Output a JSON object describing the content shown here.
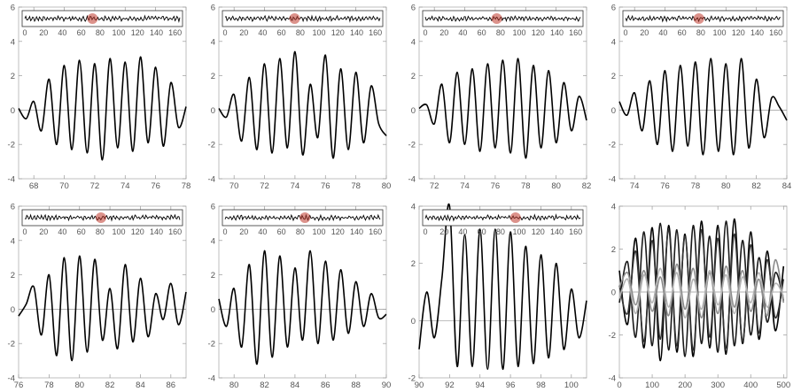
{
  "chart_data": [
    {
      "type": "line",
      "xlim": [
        67,
        78
      ],
      "ylim": [
        -4,
        6
      ],
      "x_ticks": [
        68,
        70,
        72,
        74,
        76,
        78
      ],
      "y_ticks": [
        -4,
        -2,
        0,
        2,
        4,
        6
      ],
      "inset": {
        "type": "line",
        "xlim": [
          0,
          165
        ],
        "x_ticks": [
          0,
          20,
          40,
          60,
          80,
          100,
          120,
          140,
          160
        ],
        "highlight_x": 72
      },
      "series": [
        {
          "x": [
            67,
            67.5,
            68,
            68.5,
            69,
            69.5,
            70,
            70.5,
            71,
            71.5,
            72,
            72.5,
            73,
            73.5,
            74,
            74.5,
            75,
            75.5,
            76,
            76.5,
            77,
            77.5,
            78
          ],
          "y": [
            0.1,
            -0.5,
            0.5,
            -1.2,
            1.8,
            -2.0,
            2.6,
            -2.3,
            2.9,
            -2.5,
            2.7,
            -2.9,
            3.0,
            -2.2,
            2.8,
            -2.4,
            3.1,
            -1.9,
            2.5,
            -2.1,
            1.6,
            -1.0,
            0.2
          ]
        }
      ]
    },
    {
      "type": "line",
      "xlim": [
        69,
        80
      ],
      "ylim": [
        -4,
        6
      ],
      "x_ticks": [
        70,
        72,
        74,
        76,
        78,
        80
      ],
      "y_ticks": [
        -4,
        -2,
        0,
        2,
        4,
        6
      ],
      "inset": {
        "type": "line",
        "xlim": [
          0,
          165
        ],
        "x_ticks": [
          0,
          20,
          40,
          60,
          80,
          100,
          120,
          140,
          160
        ],
        "highlight_x": 74
      },
      "series": [
        {
          "x": [
            69,
            69.5,
            70,
            70.5,
            71,
            71.5,
            72,
            72.5,
            73,
            73.5,
            74,
            74.5,
            75,
            75.5,
            76,
            76.5,
            77,
            77.5,
            78,
            78.5,
            79,
            79.5,
            80
          ],
          "y": [
            0.1,
            -0.4,
            0.9,
            -1.8,
            1.9,
            -2.3,
            2.7,
            -2.5,
            3.0,
            -2.2,
            3.4,
            -2.6,
            1.5,
            -1.6,
            3.2,
            -2.8,
            2.4,
            -2.3,
            2.2,
            -1.9,
            1.4,
            -0.8,
            -1.5
          ]
        }
      ]
    },
    {
      "type": "line",
      "xlim": [
        71,
        82
      ],
      "ylim": [
        -4,
        6
      ],
      "x_ticks": [
        72,
        74,
        76,
        78,
        80,
        82
      ],
      "y_ticks": [
        -4,
        -2,
        0,
        2,
        4,
        6
      ],
      "inset": {
        "type": "line",
        "xlim": [
          0,
          165
        ],
        "x_ticks": [
          0,
          20,
          40,
          60,
          80,
          100,
          120,
          140,
          160
        ],
        "highlight_x": 76
      },
      "series": [
        {
          "x": [
            71,
            71.5,
            72,
            72.5,
            73,
            73.5,
            74,
            74.5,
            75,
            75.5,
            76,
            76.5,
            77,
            77.5,
            78,
            78.5,
            79,
            79.5,
            80,
            80.5,
            81,
            81.5,
            82
          ],
          "y": [
            0.1,
            0.3,
            -0.8,
            1.5,
            -1.9,
            2.2,
            -2.0,
            2.4,
            -2.4,
            2.7,
            -2.2,
            2.9,
            -2.5,
            3.0,
            -2.8,
            2.6,
            -2.2,
            2.3,
            -1.9,
            1.6,
            -1.2,
            0.8,
            -0.6
          ]
        }
      ]
    },
    {
      "type": "line",
      "xlim": [
        73,
        84
      ],
      "ylim": [
        -4,
        6
      ],
      "x_ticks": [
        74,
        76,
        78,
        80,
        82,
        84
      ],
      "y_ticks": [
        -4,
        -2,
        0,
        2,
        4,
        6
      ],
      "inset": {
        "type": "line",
        "xlim": [
          0,
          165
        ],
        "x_ticks": [
          0,
          20,
          40,
          60,
          80,
          100,
          120,
          140,
          160
        ],
        "highlight_x": 78
      },
      "series": [
        {
          "x": [
            73,
            73.5,
            74,
            74.5,
            75,
            75.5,
            76,
            76.5,
            77,
            77.5,
            78,
            78.5,
            79,
            79.5,
            80,
            80.5,
            81,
            81.5,
            82,
            82.5,
            83,
            83.5,
            84
          ],
          "y": [
            0.5,
            -0.3,
            1.0,
            -1.2,
            1.7,
            -2.0,
            2.3,
            -2.4,
            2.6,
            -2.1,
            2.8,
            -2.6,
            3.0,
            -2.4,
            2.7,
            -2.6,
            3.0,
            -2.2,
            1.8,
            -1.6,
            0.7,
            0.2,
            -0.6
          ]
        }
      ]
    },
    {
      "type": "line",
      "xlim": [
        76,
        87
      ],
      "ylim": [
        -4,
        6
      ],
      "x_ticks": [
        76,
        78,
        80,
        82,
        84,
        86
      ],
      "y_ticks": [
        -4,
        -2,
        0,
        2,
        4,
        6
      ],
      "inset": {
        "type": "line",
        "xlim": [
          0,
          165
        ],
        "x_ticks": [
          0,
          20,
          40,
          60,
          80,
          100,
          120,
          140,
          160
        ],
        "highlight_x": 81
      },
      "series": [
        {
          "x": [
            76,
            76.5,
            77,
            77.5,
            78,
            78.5,
            79,
            79.5,
            80,
            80.5,
            81,
            81.5,
            82,
            82.5,
            83,
            83.5,
            84,
            84.5,
            85,
            85.5,
            86,
            86.5,
            87
          ],
          "y": [
            -0.4,
            0.3,
            1.3,
            -1.5,
            2.0,
            -2.7,
            3.0,
            -3.0,
            3.1,
            -2.5,
            2.9,
            -1.8,
            1.2,
            -2.3,
            2.6,
            -1.9,
            1.8,
            -1.6,
            0.9,
            -0.6,
            1.5,
            -0.9,
            1.0
          ]
        }
      ]
    },
    {
      "type": "line",
      "xlim": [
        79,
        90
      ],
      "ylim": [
        -4,
        6
      ],
      "x_ticks": [
        80,
        82,
        84,
        86,
        88,
        90
      ],
      "y_ticks": [
        -4,
        -2,
        0,
        2,
        4,
        6
      ],
      "inset": {
        "type": "line",
        "xlim": [
          0,
          165
        ],
        "x_ticks": [
          0,
          20,
          40,
          60,
          80,
          100,
          120,
          140,
          160
        ],
        "highlight_x": 85
      },
      "series": [
        {
          "x": [
            79,
            79.5,
            80,
            80.5,
            81,
            81.5,
            82,
            82.5,
            83,
            83.5,
            84,
            84.5,
            85,
            85.5,
            86,
            86.5,
            87,
            87.5,
            88,
            88.5,
            89,
            89.5,
            90
          ],
          "y": [
            0.6,
            -1.0,
            1.2,
            -2.2,
            2.6,
            -3.2,
            3.4,
            -2.8,
            3.1,
            -2.2,
            2.4,
            -1.8,
            3.4,
            -2.0,
            2.8,
            -1.8,
            2.3,
            -1.4,
            1.6,
            -1.0,
            0.9,
            -0.5,
            -0.3
          ]
        }
      ]
    },
    {
      "type": "line",
      "xlim": [
        90,
        101
      ],
      "ylim": [
        -2,
        4
      ],
      "x_ticks": [
        90,
        92,
        94,
        96,
        98,
        100
      ],
      "y_ticks": [
        -2,
        0,
        2,
        4
      ],
      "inset": {
        "type": "line",
        "xlim": [
          0,
          165
        ],
        "x_ticks": [
          0,
          20,
          40,
          60,
          80,
          100,
          120,
          140,
          160
        ],
        "highlight_x": 96
      },
      "series": [
        {
          "x": [
            90,
            90.5,
            91,
            91.5,
            92,
            92.5,
            93,
            93.5,
            94,
            94.5,
            95,
            95.5,
            96,
            96.5,
            97,
            97.5,
            98,
            98.5,
            99,
            99.5,
            100,
            100.5,
            101
          ],
          "y": [
            -1.0,
            1.0,
            -0.6,
            1.5,
            4.0,
            -1.6,
            3.0,
            -1.6,
            3.2,
            -1.7,
            3.2,
            -1.7,
            3.1,
            -1.6,
            2.6,
            -1.5,
            2.3,
            -1.3,
            2.0,
            -1.0,
            1.1,
            -0.6,
            0.7
          ]
        }
      ]
    },
    {
      "type": "line",
      "xlim": [
        0,
        510
      ],
      "ylim": [
        -4,
        4
      ],
      "x_ticks": [
        0,
        100,
        200,
        300,
        400,
        500
      ],
      "y_ticks": [
        -4,
        -2,
        0,
        2,
        4
      ],
      "series": [
        {
          "color": "#000000",
          "x": [
            0,
            25,
            50,
            75,
            100,
            125,
            150,
            175,
            200,
            225,
            250,
            275,
            300,
            325,
            350,
            375,
            400,
            425,
            450,
            475,
            500
          ],
          "y": [
            1.0,
            -1.5,
            2.5,
            -2.6,
            3.0,
            -3.2,
            3.1,
            -2.8,
            2.7,
            -3.0,
            3.3,
            -2.6,
            3.1,
            -2.9,
            3.4,
            -2.4,
            2.8,
            -2.2,
            1.9,
            -1.8,
            1.2
          ]
        },
        {
          "color": "#1a1a1a",
          "x": [
            0,
            25,
            50,
            75,
            100,
            125,
            150,
            175,
            200,
            225,
            250,
            275,
            300,
            325,
            350,
            375,
            400,
            425,
            450,
            475,
            500
          ],
          "y": [
            -0.5,
            1.4,
            -2.1,
            2.8,
            -2.5,
            3.2,
            -2.7,
            2.9,
            -3.0,
            3.1,
            -2.4,
            2.6,
            -2.8,
            3.3,
            -2.5,
            2.4,
            -2.0,
            1.6,
            -1.4,
            0.9,
            -0.4
          ]
        },
        {
          "color": "#333333",
          "x": [
            0,
            25,
            50,
            75,
            100,
            125,
            150,
            175,
            200,
            225,
            250,
            275,
            300,
            325,
            350,
            375,
            400,
            425,
            450,
            475,
            500
          ],
          "y": [
            0.3,
            -1.0,
            1.9,
            -2.3,
            2.4,
            -2.2,
            2.9,
            -2.5,
            2.6,
            -2.7,
            2.9,
            -2.1,
            2.5,
            -2.6,
            2.7,
            -2.3,
            2.2,
            -1.9,
            1.5,
            -1.2,
            0.6
          ]
        },
        {
          "color": "#8c8c8c",
          "x": [
            0,
            25,
            50,
            75,
            100,
            125,
            150,
            175,
            200,
            225,
            250,
            275,
            300,
            325,
            350,
            375,
            400,
            425,
            450,
            475,
            500
          ],
          "y": [
            0.2,
            0.9,
            -0.6,
            1.0,
            -0.9,
            0.7,
            -1.1,
            1.3,
            -0.8,
            1.1,
            -1.2,
            0.9,
            -1.0,
            1.2,
            -0.7,
            1.0,
            -0.9,
            0.6,
            -1.1,
            1.5,
            -0.5
          ]
        },
        {
          "color": "#b3b3b3",
          "x": [
            0,
            25,
            50,
            75,
            100,
            125,
            150,
            175,
            200,
            225,
            250,
            275,
            300,
            325,
            350,
            375,
            400,
            425,
            450,
            475,
            500
          ],
          "y": [
            -0.3,
            0.6,
            -1.0,
            0.8,
            -0.5,
            1.1,
            -0.7,
            0.9,
            -1.2,
            0.6,
            -0.8,
            1.0,
            -0.6,
            0.8,
            -1.0,
            0.7,
            -0.5,
            0.9,
            -0.7,
            0.4,
            -0.2
          ]
        }
      ]
    }
  ]
}
